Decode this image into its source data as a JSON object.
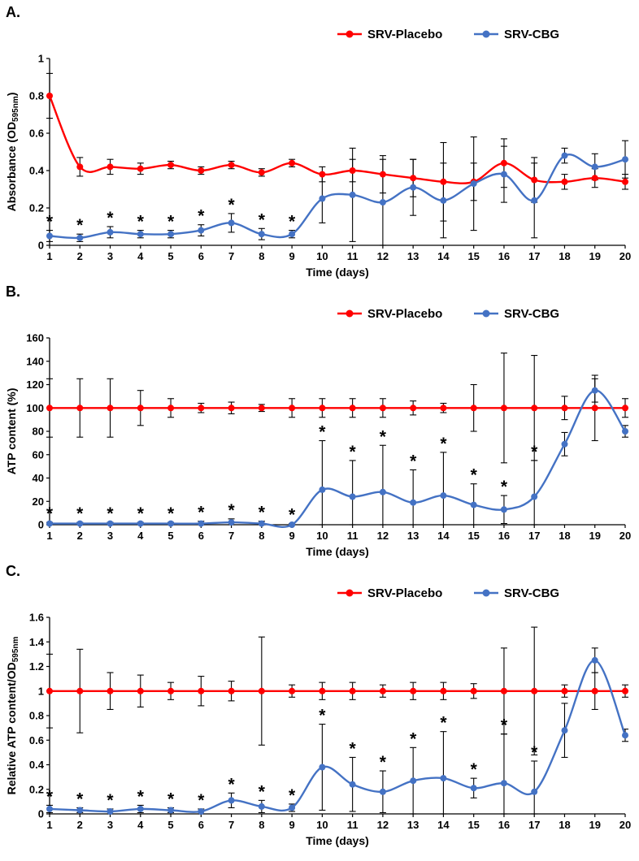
{
  "legend": {
    "items": [
      {
        "label": "SRV-Placebo",
        "color": "#FF0000"
      },
      {
        "label": "SRV-CBG",
        "color": "#4472C4"
      }
    ]
  },
  "chart_data": [
    {
      "type": "line",
      "panel_label": "A.",
      "xlabel": "Time (days)",
      "ylabel": {
        "pre": "Absorbance (OD",
        "sub": "595nm",
        "post": ")"
      },
      "x": [
        1,
        2,
        3,
        4,
        5,
        6,
        7,
        8,
        9,
        10,
        11,
        12,
        13,
        14,
        15,
        16,
        17,
        18,
        19,
        20
      ],
      "ylim": [
        0,
        1
      ],
      "ytick": 0.2,
      "series": [
        {
          "name": "SRV-Placebo",
          "color": "#FF0000",
          "values": [
            0.8,
            0.42,
            0.42,
            0.41,
            0.43,
            0.4,
            0.43,
            0.39,
            0.44,
            0.38,
            0.4,
            0.38,
            0.36,
            0.34,
            0.34,
            0.44,
            0.35,
            0.34,
            0.36,
            0.34
          ],
          "errors": [
            0.12,
            0.05,
            0.04,
            0.03,
            0.02,
            0.02,
            0.02,
            0.02,
            0.02,
            0.04,
            0.06,
            0.1,
            0.1,
            0.21,
            0.1,
            0.13,
            0.12,
            0.04,
            0.05,
            0.04
          ]
        },
        {
          "name": "SRV-CBG",
          "color": "#4472C4",
          "values": [
            0.05,
            0.04,
            0.07,
            0.06,
            0.06,
            0.08,
            0.12,
            0.06,
            0.06,
            0.25,
            0.27,
            0.23,
            0.31,
            0.24,
            0.33,
            0.38,
            0.24,
            0.48,
            0.42,
            0.46
          ],
          "errors": [
            0.03,
            0.02,
            0.03,
            0.02,
            0.02,
            0.03,
            0.05,
            0.03,
            0.02,
            0.13,
            0.25,
            0.23,
            0.15,
            0.2,
            0.25,
            0.15,
            0.2,
            0.04,
            0.07,
            0.1
          ]
        }
      ],
      "asterisk_days": [
        1,
        2,
        3,
        4,
        5,
        6,
        7,
        8,
        9
      ]
    },
    {
      "type": "line",
      "panel_label": "B.",
      "xlabel": "Time (days)",
      "ylabel": {
        "pre": "ATP  content (%)",
        "sub": "",
        "post": ""
      },
      "x": [
        1,
        2,
        3,
        4,
        5,
        6,
        7,
        8,
        9,
        10,
        11,
        12,
        13,
        14,
        15,
        16,
        17,
        18,
        19,
        20
      ],
      "ylim": [
        0,
        160
      ],
      "ytick": 20,
      "series": [
        {
          "name": "SRV-Placebo",
          "color": "#FF0000",
          "values": [
            100,
            100,
            100,
            100,
            100,
            100,
            100,
            100,
            100,
            100,
            100,
            100,
            100,
            100,
            100,
            100,
            100,
            100,
            100,
            100
          ],
          "errors": [
            25,
            25,
            25,
            15,
            8,
            4,
            5,
            3,
            8,
            8,
            8,
            8,
            6,
            4,
            20,
            47,
            45,
            10,
            28,
            8
          ]
        },
        {
          "name": "SRV-CBG",
          "color": "#4472C4",
          "values": [
            1,
            1,
            1,
            1,
            1,
            1,
            2,
            1,
            0,
            30,
            24,
            28,
            19,
            25,
            17,
            13,
            24,
            69,
            115,
            80
          ],
          "errors": [
            1,
            1,
            1,
            1,
            1,
            2,
            3,
            2,
            1,
            42,
            31,
            40,
            28,
            37,
            18,
            12,
            31,
            10,
            10,
            5
          ]
        }
      ],
      "asterisk_days": [
        1,
        2,
        3,
        4,
        5,
        6,
        7,
        8,
        9,
        10,
        11,
        12,
        13,
        14,
        15,
        16,
        17
      ]
    },
    {
      "type": "line",
      "panel_label": "C.",
      "xlabel": "Time (days)",
      "ylabel": {
        "pre": "Relative ATP content/OD",
        "sub": "595nm",
        "post": ""
      },
      "x": [
        1,
        2,
        3,
        4,
        5,
        6,
        7,
        8,
        9,
        10,
        11,
        12,
        13,
        14,
        15,
        16,
        17,
        18,
        19,
        20
      ],
      "ylim": [
        0,
        1.6
      ],
      "ytick": 0.2,
      "series": [
        {
          "name": "SRV-Placebo",
          "color": "#FF0000",
          "values": [
            1,
            1,
            1,
            1,
            1,
            1,
            1,
            1,
            1,
            1,
            1,
            1,
            1,
            1,
            1,
            1,
            1,
            1,
            1,
            1
          ],
          "errors": [
            0.3,
            0.34,
            0.15,
            0.13,
            0.07,
            0.12,
            0.08,
            0.44,
            0.05,
            0.07,
            0.07,
            0.05,
            0.07,
            0.07,
            0.06,
            0.35,
            0.52,
            0.05,
            0.15,
            0.05
          ]
        },
        {
          "name": "SRV-CBG",
          "color": "#4472C4",
          "values": [
            0.04,
            0.03,
            0.02,
            0.04,
            0.03,
            0.02,
            0.11,
            0.06,
            0.05,
            0.38,
            0.24,
            0.18,
            0.27,
            0.29,
            0.21,
            0.25,
            0.18,
            0.68,
            1.25,
            0.64
          ],
          "errors": [
            0.03,
            0.02,
            0.02,
            0.03,
            0.02,
            0.02,
            0.06,
            0.05,
            0.03,
            0.35,
            0.22,
            0.17,
            0.27,
            0.38,
            0.08,
            0.4,
            0.25,
            0.22,
            0.1,
            0.05
          ]
        }
      ],
      "asterisk_days": [
        1,
        2,
        3,
        4,
        5,
        6,
        7,
        8,
        9,
        10,
        11,
        12,
        13,
        14,
        15,
        16,
        17
      ]
    }
  ]
}
